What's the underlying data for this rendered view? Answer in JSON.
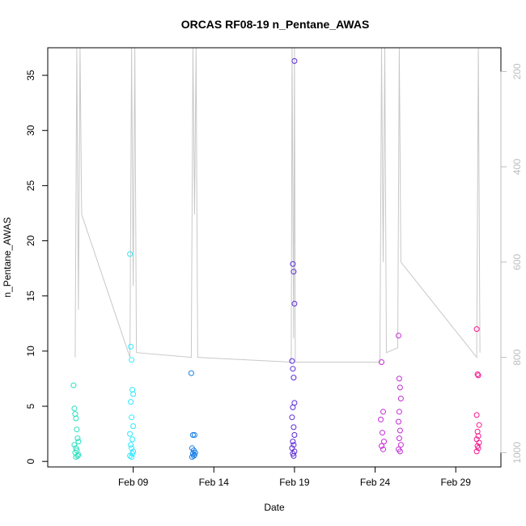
{
  "chart_data": {
    "type": "scatter",
    "title": "ORCAS RF08-19 n_Pentane_AWAS",
    "xlabel": "Date",
    "ylabel": "n_Pentane_AWAS",
    "x_unit": "day of February 2016",
    "xlim": [
      3.7,
      31.8
    ],
    "ylim": [
      -0.5,
      37.5
    ],
    "x_ticks": [
      {
        "value": 9,
        "label": "Feb 09"
      },
      {
        "value": 14,
        "label": "Feb 14"
      },
      {
        "value": 19,
        "label": "Feb 19"
      },
      {
        "value": 24,
        "label": "Feb 24"
      },
      {
        "value": 29,
        "label": "Feb 29"
      }
    ],
    "y_ticks": [
      0,
      5,
      10,
      15,
      20,
      25,
      30,
      35
    ],
    "right_axis": {
      "color": "#bdbdbd",
      "inverted": true,
      "ylim": [
        150,
        1030
      ],
      "ticks": [
        200,
        400,
        600,
        800,
        1000
      ]
    },
    "background_trace": {
      "color": "#c8c8c8",
      "points": [
        [
          5.4,
          800
        ],
        [
          5.5,
          150
        ],
        [
          5.6,
          700
        ],
        [
          5.7,
          150
        ],
        [
          5.8,
          500
        ],
        [
          8.8,
          800
        ],
        [
          8.9,
          150
        ],
        [
          9.0,
          650
        ],
        [
          9.1,
          150
        ],
        [
          9.2,
          790
        ],
        [
          12.6,
          800
        ],
        [
          12.7,
          150
        ],
        [
          12.8,
          500
        ],
        [
          12.9,
          150
        ],
        [
          13.0,
          800
        ],
        [
          18.8,
          810
        ],
        [
          18.85,
          150
        ],
        [
          18.95,
          760
        ],
        [
          19.0,
          150
        ],
        [
          19.05,
          810
        ],
        [
          24.3,
          810
        ],
        [
          24.4,
          150
        ],
        [
          24.5,
          600
        ],
        [
          24.6,
          150
        ],
        [
          24.7,
          790
        ],
        [
          25.4,
          780
        ],
        [
          25.5,
          150
        ],
        [
          25.6,
          600
        ],
        [
          30.3,
          800
        ],
        [
          30.4,
          150
        ],
        [
          30.5,
          790
        ]
      ]
    },
    "series": [
      {
        "color": "#26e0c0",
        "x": [
          5.3,
          5.35,
          5.4,
          5.45,
          5.5,
          5.55,
          5.6,
          5.35,
          5.45,
          5.5,
          5.4,
          5.6,
          5.55,
          5.45
        ],
        "values": [
          6.9,
          4.8,
          4.3,
          3.9,
          2.9,
          2.1,
          1.8,
          1.5,
          1.2,
          1.0,
          0.8,
          0.6,
          0.5,
          0.4
        ]
      },
      {
        "color": "#30e8ff",
        "x": [
          8.8,
          8.85,
          8.9,
          8.95,
          9.0,
          8.85,
          8.9,
          9.0,
          8.8,
          8.95,
          8.85,
          8.9,
          9.0,
          8.95,
          8.8,
          8.9
        ],
        "values": [
          18.8,
          10.4,
          9.2,
          6.5,
          6.1,
          5.4,
          4.0,
          3.2,
          2.5,
          2.0,
          1.5,
          1.2,
          0.9,
          0.7,
          0.5,
          0.4
        ]
      },
      {
        "color": "#1a7fe6",
        "x": [
          12.6,
          12.7,
          12.8,
          12.65,
          12.75,
          12.85,
          12.7,
          12.8,
          12.75,
          12.65
        ],
        "values": [
          8.0,
          2.4,
          2.4,
          1.2,
          1.0,
          0.8,
          0.7,
          0.6,
          0.5,
          0.4
        ]
      },
      {
        "color": "#5a2ad6",
        "x": [
          19.0,
          18.9,
          18.95,
          19.0,
          18.85,
          18.9,
          18.95,
          19.0,
          18.9,
          18.85,
          18.95,
          19.0,
          18.9,
          18.95,
          18.85,
          19.0,
          18.9,
          18.95
        ],
        "values": [
          36.3,
          17.9,
          17.2,
          14.3,
          9.1,
          8.4,
          7.6,
          5.3,
          4.9,
          4.0,
          3.1,
          2.4,
          1.8,
          1.5,
          1.2,
          0.9,
          0.7,
          0.5
        ]
      },
      {
        "color": "#c52bd6",
        "x": [
          24.4,
          24.5,
          24.35,
          24.45,
          24.55,
          24.4,
          24.5,
          25.45,
          25.5,
          25.55,
          25.6,
          25.5,
          25.45,
          25.55,
          25.5,
          25.6,
          25.45,
          25.55
        ],
        "values": [
          9.0,
          4.5,
          3.8,
          2.6,
          1.8,
          1.4,
          1.1,
          11.4,
          7.5,
          6.7,
          5.7,
          4.5,
          3.6,
          2.8,
          2.1,
          1.5,
          1.1,
          0.9
        ]
      },
      {
        "color": "#f51890",
        "x": [
          30.3,
          30.35,
          30.4,
          30.3,
          30.45,
          30.35,
          30.4,
          30.3,
          30.45,
          30.35,
          30.4,
          30.3
        ],
        "values": [
          12.0,
          7.9,
          7.8,
          4.2,
          3.3,
          2.7,
          2.3,
          2.0,
          1.7,
          1.4,
          1.2,
          0.9
        ]
      }
    ]
  }
}
